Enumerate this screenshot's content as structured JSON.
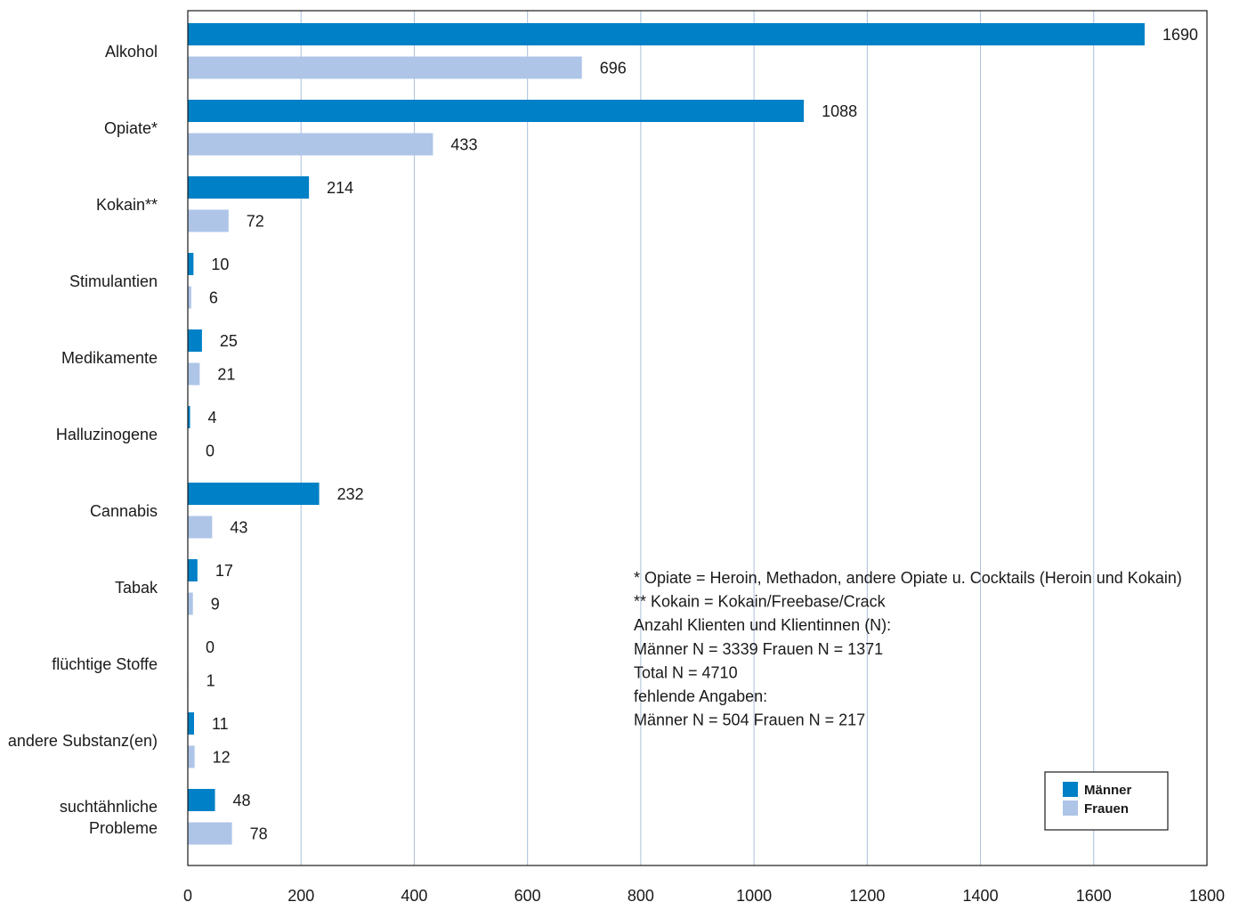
{
  "chart_data": {
    "type": "bar",
    "orientation": "horizontal",
    "categories": [
      [
        "Alkohol"
      ],
      [
        "Opiate*"
      ],
      [
        "Kokain**"
      ],
      [
        "Stimulantien"
      ],
      [
        "Medikamente"
      ],
      [
        "Halluzinogene"
      ],
      [
        "Cannabis"
      ],
      [
        "Tabak"
      ],
      [
        "flüchtige Stoffe"
      ],
      [
        "andere Substanz(en)"
      ],
      [
        "suchtähnliche",
        "Probleme"
      ]
    ],
    "series": [
      {
        "name": "Männer",
        "color": "#0080c6",
        "values": [
          1690,
          1088,
          214,
          10,
          25,
          4,
          232,
          17,
          0,
          11,
          48
        ]
      },
      {
        "name": "Frauen",
        "color": "#aec5e8",
        "values": [
          696,
          433,
          72,
          6,
          21,
          0,
          43,
          9,
          1,
          12,
          78
        ]
      }
    ],
    "xlim": [
      0,
      1800
    ],
    "xticks": [
      0,
      200,
      400,
      600,
      800,
      1000,
      1200,
      1400,
      1600,
      1800
    ],
    "grid": true,
    "legend": "bottom-right",
    "notes": [
      "* Opiate = Heroin, Methadon, andere Opiate u. Cocktails (Heroin und Kokain)",
      "** Kokain = Kokain/Freebase/Crack",
      "Anzahl Klienten und Klientinnen (N):",
      "Männer N = 3339 Frauen N = 1371",
      "Total N = 4710",
      "fehlende Angaben:",
      "Männer N = 504 Frauen N = 217"
    ]
  }
}
